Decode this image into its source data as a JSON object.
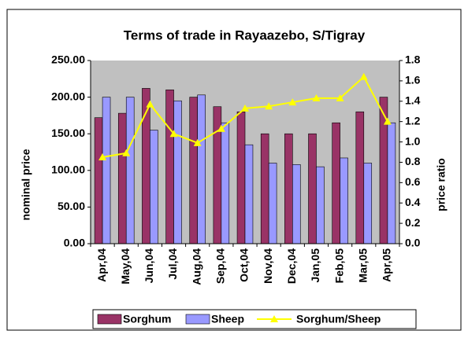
{
  "chart_data": {
    "type": "bar_line",
    "title": "Terms of trade in Rayaazebo, S/Tigray",
    "y_label": "nominal price",
    "y2_label": "price ratio",
    "categories": [
      "Apr,04",
      "May,04",
      "Jun,04",
      "Jul,04",
      "Aug,04",
      "Sep,04",
      "Oct,04",
      "Nov,04",
      "Dec,04",
      "Jan,05",
      "Feb,05",
      "Mar,05",
      "Apr,05"
    ],
    "series": [
      {
        "name": "Sorghum",
        "color": "#993366",
        "type": "bar",
        "values": [
          172,
          178,
          212,
          210,
          200,
          187,
          180,
          150,
          150,
          150,
          165,
          180,
          200
        ]
      },
      {
        "name": "Sheep",
        "color": "#9999ff",
        "type": "bar",
        "values": [
          200,
          200,
          155,
          195,
          203,
          165,
          135,
          110,
          108,
          105,
          117,
          110,
          165
        ]
      },
      {
        "name": "Sorghum/Sheep",
        "color": "#ffff00",
        "type": "line",
        "axis": "y2",
        "values": [
          0.85,
          0.89,
          1.37,
          1.08,
          0.99,
          1.13,
          1.33,
          1.35,
          1.39,
          1.43,
          1.43,
          1.64,
          1.2
        ]
      }
    ],
    "ylim": [
      0,
      250
    ],
    "yticks": [
      {
        "value": 0,
        "label": "0.00"
      },
      {
        "value": 50,
        "label": "50.00"
      },
      {
        "value": 100,
        "label": "100.00"
      },
      {
        "value": 150,
        "label": "150.00"
      },
      {
        "value": 200,
        "label": "200.00"
      },
      {
        "value": 250,
        "label": "250.00"
      }
    ],
    "y2lim": [
      0,
      1.8
    ],
    "y2ticks": [
      {
        "value": 0,
        "label": "0.0"
      },
      0.2,
      0.4,
      0.6,
      0.8,
      {
        "value": 1,
        "label": "1.0"
      },
      1.2,
      1.4,
      1.6,
      1.8
    ],
    "plot_background": "#c0c0c0",
    "legend": "bottom"
  }
}
